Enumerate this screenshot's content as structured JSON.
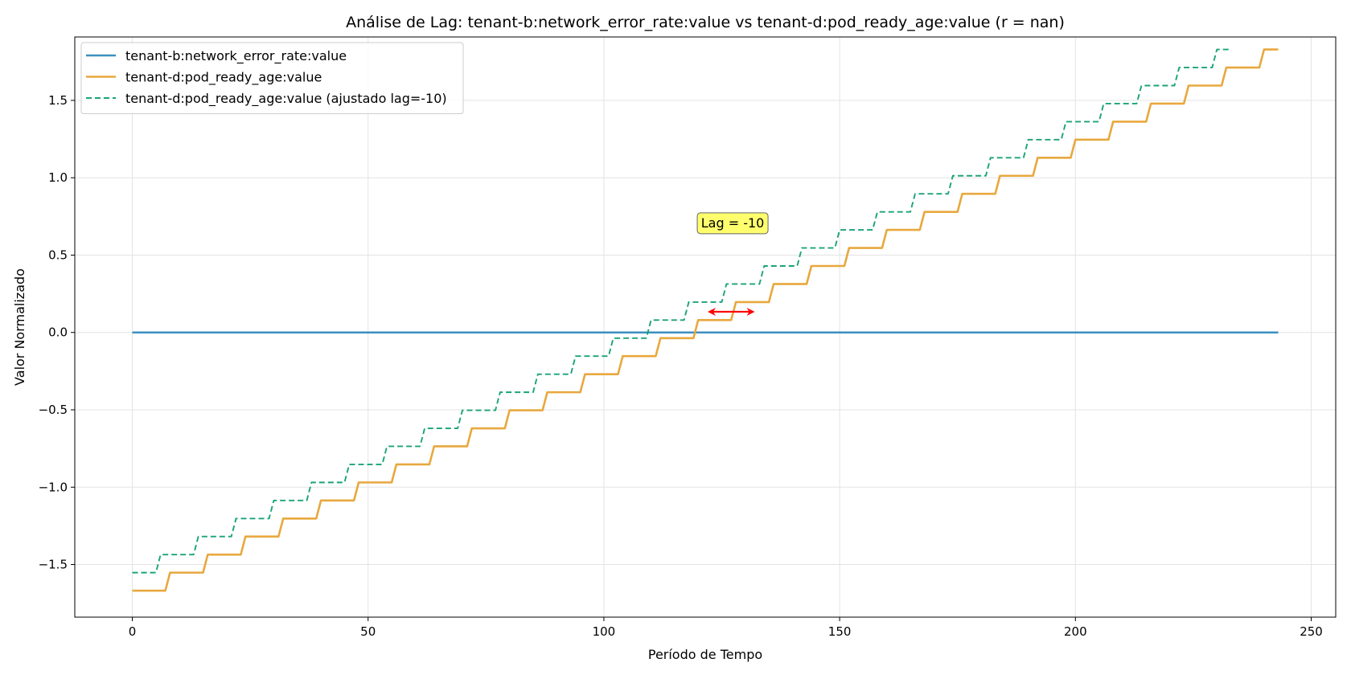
{
  "chart_data": {
    "type": "line",
    "title": "Análise de Lag: tenant-b:network_error_rate:value vs tenant-d:pod_ready_age:value (r = nan)",
    "xlabel": "Período de Tempo",
    "ylabel": "Valor Normalizado",
    "xlim": [
      -12.2,
      255.2
    ],
    "ylim": [
      -1.84,
      1.91
    ],
    "xticks": [
      0,
      50,
      100,
      150,
      200,
      250
    ],
    "xtick_labels": [
      "0",
      "50",
      "100",
      "150",
      "200",
      "250"
    ],
    "yticks": [
      -1.5,
      -1.0,
      -0.5,
      0.0,
      0.5,
      1.0,
      1.5
    ],
    "ytick_labels": [
      "−1.5",
      "−1.0",
      "−0.5",
      "0.0",
      "0.5",
      "1.0",
      "1.5"
    ],
    "grid": true,
    "legend_position": "top-left",
    "step": {
      "length": 8,
      "first_value": -1.669,
      "increment": 0.1166,
      "n_points": 244,
      "lag": -10
    },
    "series": [
      {
        "name": "tenant-b:network_error_rate:value",
        "kind": "constant",
        "x_start": 0,
        "x_end": 243,
        "value": 0.0,
        "color": "#3b8fc0",
        "style": "solid"
      },
      {
        "name": "tenant-d:pod_ready_age:value",
        "kind": "staircase",
        "x_start": 0,
        "x_end": 243,
        "color": "#e8a83e",
        "style": "solid"
      },
      {
        "name": "tenant-d:pod_ready_age:value (ajustado lag=-10)",
        "kind": "staircase_shifted",
        "x_start": 0,
        "x_end": 233,
        "color": "#1aa37a",
        "style": "dashed"
      }
    ],
    "annotation": {
      "text": "Lag = -10",
      "x": 121,
      "y": 0.68,
      "arrow": {
        "x_from": 122,
        "x_to": 132,
        "y": 0.134,
        "color": "#ff0000"
      },
      "box_color": "#ffff6e"
    }
  }
}
